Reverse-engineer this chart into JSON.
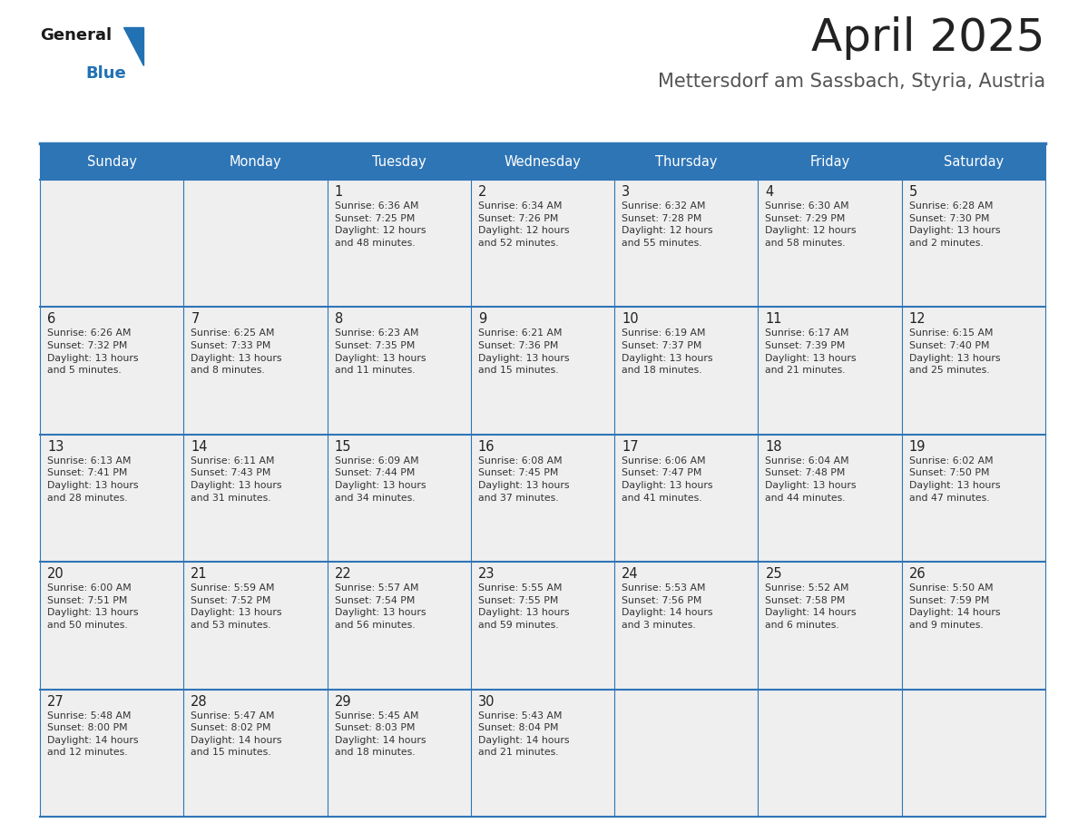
{
  "title": "April 2025",
  "subtitle": "Mettersdorf am Sassbach, Styria, Austria",
  "days_of_week": [
    "Sunday",
    "Monday",
    "Tuesday",
    "Wednesday",
    "Thursday",
    "Friday",
    "Saturday"
  ],
  "header_bg": "#2E75B6",
  "header_text": "#FFFFFF",
  "row_bg": "#EFEFEF",
  "cell_text": "#333333",
  "day_num_color": "#222222",
  "grid_line_color": "#2E75B6",
  "title_color": "#222222",
  "subtitle_color": "#555555",
  "logo_general_color": "#1a1a1a",
  "logo_blue_color": "#2271B3",
  "calendar": [
    [
      {
        "day": null,
        "info": ""
      },
      {
        "day": null,
        "info": ""
      },
      {
        "day": 1,
        "info": "Sunrise: 6:36 AM\nSunset: 7:25 PM\nDaylight: 12 hours\nand 48 minutes."
      },
      {
        "day": 2,
        "info": "Sunrise: 6:34 AM\nSunset: 7:26 PM\nDaylight: 12 hours\nand 52 minutes."
      },
      {
        "day": 3,
        "info": "Sunrise: 6:32 AM\nSunset: 7:28 PM\nDaylight: 12 hours\nand 55 minutes."
      },
      {
        "day": 4,
        "info": "Sunrise: 6:30 AM\nSunset: 7:29 PM\nDaylight: 12 hours\nand 58 minutes."
      },
      {
        "day": 5,
        "info": "Sunrise: 6:28 AM\nSunset: 7:30 PM\nDaylight: 13 hours\nand 2 minutes."
      }
    ],
    [
      {
        "day": 6,
        "info": "Sunrise: 6:26 AM\nSunset: 7:32 PM\nDaylight: 13 hours\nand 5 minutes."
      },
      {
        "day": 7,
        "info": "Sunrise: 6:25 AM\nSunset: 7:33 PM\nDaylight: 13 hours\nand 8 minutes."
      },
      {
        "day": 8,
        "info": "Sunrise: 6:23 AM\nSunset: 7:35 PM\nDaylight: 13 hours\nand 11 minutes."
      },
      {
        "day": 9,
        "info": "Sunrise: 6:21 AM\nSunset: 7:36 PM\nDaylight: 13 hours\nand 15 minutes."
      },
      {
        "day": 10,
        "info": "Sunrise: 6:19 AM\nSunset: 7:37 PM\nDaylight: 13 hours\nand 18 minutes."
      },
      {
        "day": 11,
        "info": "Sunrise: 6:17 AM\nSunset: 7:39 PM\nDaylight: 13 hours\nand 21 minutes."
      },
      {
        "day": 12,
        "info": "Sunrise: 6:15 AM\nSunset: 7:40 PM\nDaylight: 13 hours\nand 25 minutes."
      }
    ],
    [
      {
        "day": 13,
        "info": "Sunrise: 6:13 AM\nSunset: 7:41 PM\nDaylight: 13 hours\nand 28 minutes."
      },
      {
        "day": 14,
        "info": "Sunrise: 6:11 AM\nSunset: 7:43 PM\nDaylight: 13 hours\nand 31 minutes."
      },
      {
        "day": 15,
        "info": "Sunrise: 6:09 AM\nSunset: 7:44 PM\nDaylight: 13 hours\nand 34 minutes."
      },
      {
        "day": 16,
        "info": "Sunrise: 6:08 AM\nSunset: 7:45 PM\nDaylight: 13 hours\nand 37 minutes."
      },
      {
        "day": 17,
        "info": "Sunrise: 6:06 AM\nSunset: 7:47 PM\nDaylight: 13 hours\nand 41 minutes."
      },
      {
        "day": 18,
        "info": "Sunrise: 6:04 AM\nSunset: 7:48 PM\nDaylight: 13 hours\nand 44 minutes."
      },
      {
        "day": 19,
        "info": "Sunrise: 6:02 AM\nSunset: 7:50 PM\nDaylight: 13 hours\nand 47 minutes."
      }
    ],
    [
      {
        "day": 20,
        "info": "Sunrise: 6:00 AM\nSunset: 7:51 PM\nDaylight: 13 hours\nand 50 minutes."
      },
      {
        "day": 21,
        "info": "Sunrise: 5:59 AM\nSunset: 7:52 PM\nDaylight: 13 hours\nand 53 minutes."
      },
      {
        "day": 22,
        "info": "Sunrise: 5:57 AM\nSunset: 7:54 PM\nDaylight: 13 hours\nand 56 minutes."
      },
      {
        "day": 23,
        "info": "Sunrise: 5:55 AM\nSunset: 7:55 PM\nDaylight: 13 hours\nand 59 minutes."
      },
      {
        "day": 24,
        "info": "Sunrise: 5:53 AM\nSunset: 7:56 PM\nDaylight: 14 hours\nand 3 minutes."
      },
      {
        "day": 25,
        "info": "Sunrise: 5:52 AM\nSunset: 7:58 PM\nDaylight: 14 hours\nand 6 minutes."
      },
      {
        "day": 26,
        "info": "Sunrise: 5:50 AM\nSunset: 7:59 PM\nDaylight: 14 hours\nand 9 minutes."
      }
    ],
    [
      {
        "day": 27,
        "info": "Sunrise: 5:48 AM\nSunset: 8:00 PM\nDaylight: 14 hours\nand 12 minutes."
      },
      {
        "day": 28,
        "info": "Sunrise: 5:47 AM\nSunset: 8:02 PM\nDaylight: 14 hours\nand 15 minutes."
      },
      {
        "day": 29,
        "info": "Sunrise: 5:45 AM\nSunset: 8:03 PM\nDaylight: 14 hours\nand 18 minutes."
      },
      {
        "day": 30,
        "info": "Sunrise: 5:43 AM\nSunset: 8:04 PM\nDaylight: 14 hours\nand 21 minutes."
      },
      {
        "day": null,
        "info": ""
      },
      {
        "day": null,
        "info": ""
      },
      {
        "day": null,
        "info": ""
      }
    ]
  ]
}
